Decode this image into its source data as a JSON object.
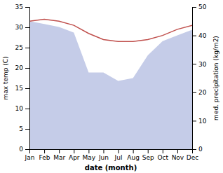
{
  "chart_data": {
    "type": "line",
    "x_label": "date (month)",
    "y_label": "max temp (C)",
    "y2_label": "med. precipitation (kg/m2)",
    "categories": [
      "Jan",
      "Feb",
      "Mar",
      "Apr",
      "May",
      "Jun",
      "Jul",
      "Aug",
      "Sep",
      "Oct",
      "Nov",
      "Dec"
    ],
    "series": [
      {
        "type": "area",
        "axis": "y2",
        "color": "#c5cce8",
        "values": [
          45.0,
          44.0,
          43.0,
          41.0,
          27.0,
          27.0,
          24.0,
          25.0,
          33.0,
          38.0,
          40.0,
          42.0
        ]
      },
      {
        "type": "line",
        "color": "#c0504d",
        "values": [
          31.5,
          32.0,
          31.5,
          30.5,
          28.5,
          27.0,
          26.5,
          26.5,
          27.0,
          28.0,
          29.5,
          30.5
        ]
      }
    ],
    "ylim": [
      0,
      35
    ],
    "yticks": [
      0,
      5,
      10,
      15,
      20,
      25,
      30,
      35
    ],
    "y2lim": [
      0,
      50
    ],
    "y2ticks": [
      0,
      10,
      20,
      30,
      40,
      50
    ]
  }
}
